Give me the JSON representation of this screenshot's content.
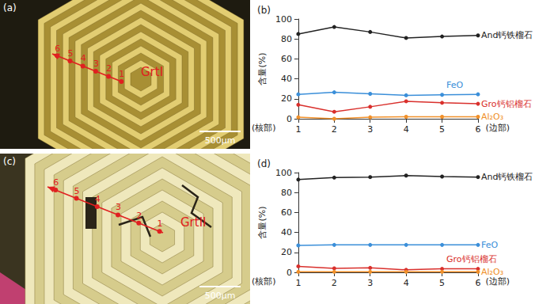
{
  "images": [
    {
      "label": "(a)",
      "name": "GrtI",
      "points": [
        "1",
        "2",
        "3",
        "4",
        "5",
        "6"
      ],
      "scale_bar": "500μm"
    },
    {
      "label": "(c)",
      "name": "GrtII",
      "points": [
        "1",
        "2",
        "3",
        "4",
        "5",
        "6"
      ],
      "scale_bar": "500μm"
    }
  ],
  "chart_data": [
    {
      "type": "line",
      "title": "(b)",
      "y_label": "含量(%)",
      "categories": [
        "1",
        "2",
        "3",
        "4",
        "5",
        "6"
      ],
      "annotations": [
        "(核部)",
        "(边部)"
      ],
      "series": [
        {
          "name": "And钙铁榴石",
          "color": "#222222",
          "values": [
            85,
            92,
            87,
            81,
            82.5,
            83.5
          ]
        },
        {
          "name": "FeO",
          "color": "#3b8fd9",
          "values": [
            24.5,
            26.5,
            25,
            23.5,
            24,
            24.5
          ]
        },
        {
          "name": "Gro钙铝榴石",
          "color": "#d9302c",
          "values": [
            14,
            7,
            12,
            17.5,
            16,
            15
          ]
        },
        {
          "name": "Al₂O₃",
          "color": "#f0902a",
          "values": [
            1.5,
            0,
            1.5,
            2,
            2,
            2
          ]
        }
      ],
      "ylim": [
        0,
        100
      ],
      "yticks": [
        0,
        20,
        40,
        60,
        80,
        100
      ],
      "grid": false,
      "marker": "circle"
    },
    {
      "type": "line",
      "title": "(d)",
      "y_label": "含量(%)",
      "categories": [
        "1",
        "2",
        "3",
        "4",
        "5",
        "6"
      ],
      "annotations": [
        "(核部)",
        "(边部)"
      ],
      "series": [
        {
          "name": "And钙铁榴石",
          "color": "#222222",
          "values": [
            93,
            95,
            95.5,
            97,
            96,
            95.5
          ]
        },
        {
          "name": "FeO",
          "color": "#3b8fd9",
          "values": [
            27,
            27.5,
            27.5,
            27.5,
            27.5,
            27.5
          ]
        },
        {
          "name": "Gro钙铝榴石",
          "color": "#d9302c",
          "values": [
            6,
            4,
            4.5,
            2.5,
            3.5,
            3.5
          ]
        },
        {
          "name": "Al₂O₃",
          "color": "#f0902a",
          "values": [
            0.5,
            0.5,
            0.5,
            0.5,
            0.5,
            0.5
          ]
        }
      ],
      "ylim": [
        0,
        100
      ],
      "yticks": [
        0,
        20,
        40,
        60,
        80,
        100
      ],
      "grid": false,
      "marker": "circle"
    }
  ]
}
